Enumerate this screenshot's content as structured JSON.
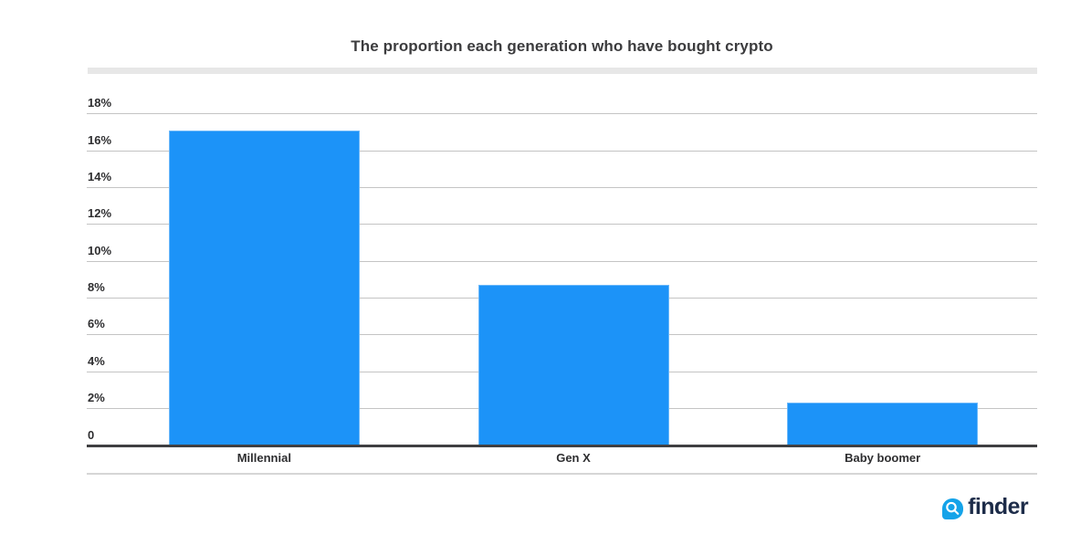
{
  "chart_data": {
    "type": "bar",
    "title": "The proportion each generation who have bought crypto",
    "categories": [
      "Millennial",
      "Gen X",
      "Baby boomer"
    ],
    "values": [
      17.1,
      8.7,
      2.3
    ],
    "value_unit": "%",
    "xlabel": "",
    "ylabel": "",
    "ylim": [
      0,
      18
    ],
    "ytick_step": 2,
    "ytick_labels": [
      "0",
      "2%",
      "4%",
      "6%",
      "8%",
      "10%",
      "12%",
      "14%",
      "16%",
      "18%"
    ],
    "grid": true,
    "legend": false,
    "bar_color": "#1c93f8",
    "gridline_color": "#c4c4c4",
    "axis_color": "#3f3f41"
  },
  "footer": {
    "logo_text": "finder",
    "logo_icon": "magnifier-icon",
    "icon_color": "#14a3e9",
    "text_color": "#1d2c49"
  }
}
